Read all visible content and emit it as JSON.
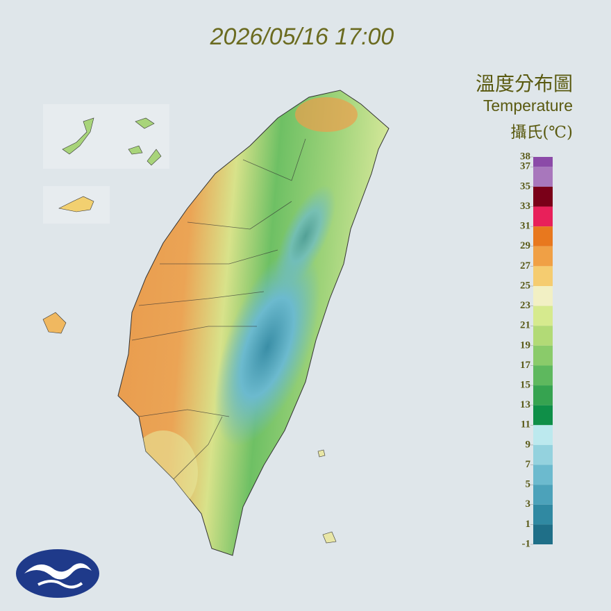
{
  "timestamp": "2026/05/16 17:00",
  "legend": {
    "title": "溫度分布圖",
    "subtitle": "Temperature",
    "unit": "攝氏(℃)",
    "ticks": [
      38,
      37,
      35,
      33,
      31,
      29,
      27,
      25,
      23,
      21,
      19,
      17,
      15,
      13,
      11,
      9,
      7,
      5,
      3,
      1,
      -1
    ],
    "colors": [
      "#8b4aa8",
      "#a877bc",
      "#7a0018",
      "#e8205a",
      "#e8781e",
      "#f0a045",
      "#f5cc70",
      "#f2f0c4",
      "#d6ea8e",
      "#b2da76",
      "#8acb6a",
      "#5eb85e",
      "#36a350",
      "#0f8f48",
      "#bce9ee",
      "#94d2de",
      "#6cbace",
      "#4ca2ba",
      "#3089a2",
      "#1f6f88"
    ]
  }
}
